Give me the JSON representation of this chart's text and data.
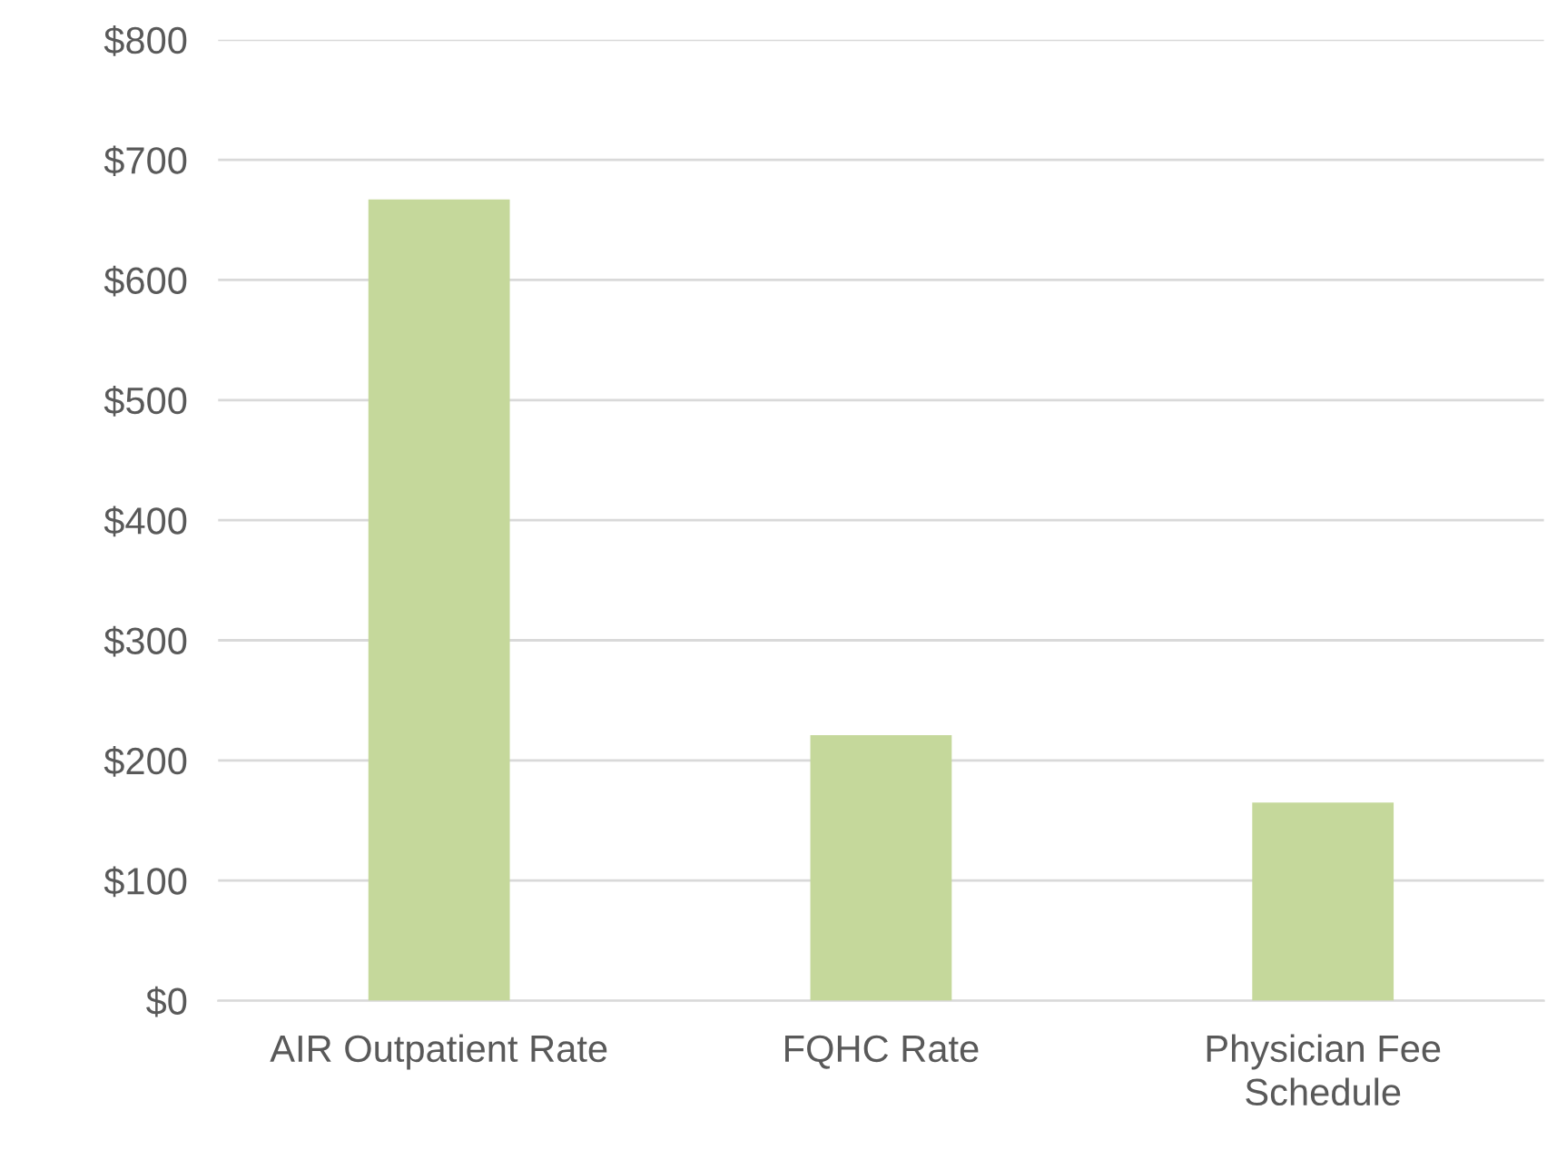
{
  "chart_data": {
    "type": "bar",
    "categories": [
      "AIR Outpatient Rate",
      "FQHC Rate",
      "Physician Fee Schedule"
    ],
    "values": [
      667,
      221,
      165
    ],
    "color": "#c5d89b",
    "ylim": [
      0,
      800
    ],
    "yticks": [
      {
        "value": 0,
        "label": "$0"
      },
      {
        "value": 100,
        "label": "$100"
      },
      {
        "value": 200,
        "label": "$200"
      },
      {
        "value": 300,
        "label": "$300"
      },
      {
        "value": 400,
        "label": "$400"
      },
      {
        "value": 500,
        "label": "$500"
      },
      {
        "value": 600,
        "label": "$600"
      },
      {
        "value": 700,
        "label": "$700"
      },
      {
        "value": 800,
        "label": "$800"
      }
    ],
    "grid": "y",
    "legend": false
  }
}
